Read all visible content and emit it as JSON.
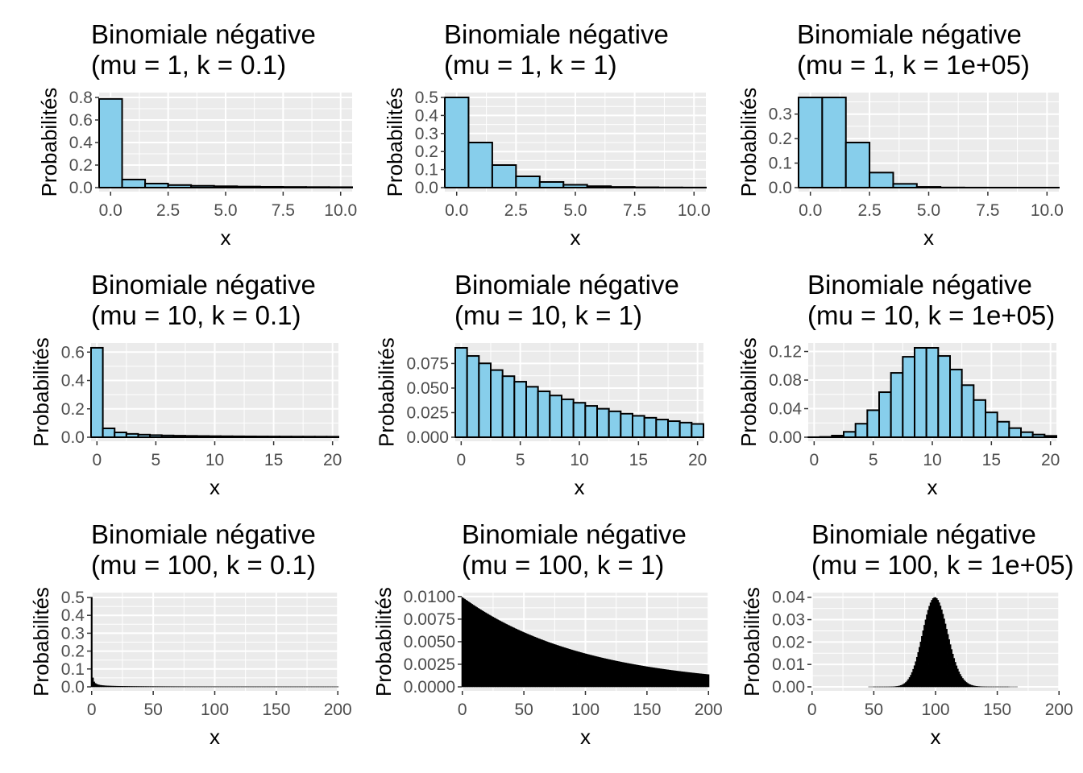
{
  "page": {
    "background": "#ffffff",
    "panel_background": "#ebebeb",
    "grid_color": "#ffffff",
    "bar_fill": "#87ceeb",
    "bar_stroke": "#000000"
  },
  "chart_data": [
    {
      "type": "bar",
      "title_line1": "Binomiale négative",
      "title_line2": "(mu = 1, k = 0.1)",
      "xlabel": "x",
      "ylabel": "Probabilités",
      "x_ticks": [
        "0.0",
        "2.5",
        "5.0",
        "7.5",
        "10.0"
      ],
      "y_ticks": [
        "0.0",
        "0.2",
        "0.4",
        "0.6",
        "0.8"
      ],
      "xlim": [
        -0.5,
        10.5
      ],
      "ylim": [
        0,
        0.8
      ],
      "mu": 1,
      "k": 0.1,
      "support_max": 10
    },
    {
      "type": "bar",
      "title_line1": "Binomiale négative",
      "title_line2": "(mu = 1, k = 1)",
      "xlabel": "x",
      "ylabel": "Probabilités",
      "x_ticks": [
        "0.0",
        "2.5",
        "5.0",
        "7.5",
        "10.0"
      ],
      "y_ticks": [
        "0.0",
        "0.1",
        "0.2",
        "0.3",
        "0.4",
        "0.5"
      ],
      "xlim": [
        -0.5,
        10.5
      ],
      "ylim": [
        0,
        0.5
      ],
      "mu": 1,
      "k": 1,
      "support_max": 10
    },
    {
      "type": "bar",
      "title_line1": "Binomiale négative",
      "title_line2": "(mu = 1, k = 1e+05)",
      "xlabel": "x",
      "ylabel": "Probabilités",
      "x_ticks": [
        "0.0",
        "2.5",
        "5.0",
        "7.5",
        "10.0"
      ],
      "y_ticks": [
        "0.0",
        "0.1",
        "0.2",
        "0.3"
      ],
      "xlim": [
        -0.5,
        10.5
      ],
      "ylim": [
        0,
        0.368
      ],
      "mu": 1,
      "k": 100000,
      "support_max": 10
    },
    {
      "type": "bar",
      "title_line1": "Binomiale négative",
      "title_line2": "(mu = 10, k = 0.1)",
      "xlabel": "x",
      "ylabel": "Probabilités",
      "x_ticks": [
        "0",
        "5",
        "10",
        "15",
        "20"
      ],
      "y_ticks": [
        "0.0",
        "0.2",
        "0.4",
        "0.6"
      ],
      "xlim": [
        -0.5,
        20.5
      ],
      "ylim": [
        0,
        0.63
      ],
      "mu": 10,
      "k": 0.1,
      "support_max": 20
    },
    {
      "type": "bar",
      "title_line1": "Binomiale négative",
      "title_line2": "(mu = 10, k = 1)",
      "xlabel": "x",
      "ylabel": "Probabilités",
      "x_ticks": [
        "0",
        "5",
        "10",
        "15",
        "20"
      ],
      "y_ticks": [
        "0.000",
        "0.025",
        "0.050",
        "0.075"
      ],
      "xlim": [
        -0.5,
        20.5
      ],
      "ylim": [
        0,
        0.0909
      ],
      "mu": 10,
      "k": 1,
      "support_max": 20
    },
    {
      "type": "bar",
      "title_line1": "Binomiale négative",
      "title_line2": "(mu = 10, k = 1e+05)",
      "xlabel": "x",
      "ylabel": "Probabilités",
      "x_ticks": [
        "0",
        "5",
        "10",
        "15",
        "20"
      ],
      "y_ticks": [
        "0.00",
        "0.04",
        "0.08",
        "0.12"
      ],
      "xlim": [
        -0.5,
        20.5
      ],
      "ylim": [
        0,
        0.1251
      ],
      "mu": 10,
      "k": 100000,
      "support_max": 20
    },
    {
      "type": "bar",
      "title_line1": "Binomiale négative",
      "title_line2": "(mu = 100, k = 0.1)",
      "xlabel": "x",
      "ylabel": "Probabilités",
      "x_ticks": [
        "0",
        "50",
        "100",
        "150",
        "200"
      ],
      "y_ticks": [
        "0.0",
        "0.1",
        "0.2",
        "0.3",
        "0.4",
        "0.5"
      ],
      "xlim": [
        -0.5,
        200.5
      ],
      "ylim": [
        0,
        0.5
      ],
      "mu": 100,
      "k": 0.1,
      "support_max": 200
    },
    {
      "type": "bar",
      "title_line1": "Binomiale négative",
      "title_line2": "(mu = 100, k = 1)",
      "xlabel": "x",
      "ylabel": "Probabilités",
      "x_ticks": [
        "0",
        "50",
        "100",
        "150",
        "200"
      ],
      "y_ticks": [
        "0.0000",
        "0.0025",
        "0.0050",
        "0.0075",
        "0.0100"
      ],
      "xlim": [
        -0.5,
        200.5
      ],
      "ylim": [
        0,
        0.0099
      ],
      "mu": 100,
      "k": 1,
      "support_max": 200
    },
    {
      "type": "bar",
      "title_line1": "Binomiale négative",
      "title_line2": "(mu = 100, k = 1e+05)",
      "xlabel": "x",
      "ylabel": "Probabilités",
      "x_ticks": [
        "0",
        "50",
        "100",
        "150",
        "200"
      ],
      "y_ticks": [
        "0.00",
        "0.01",
        "0.02",
        "0.03",
        "0.04"
      ],
      "xlim": [
        -0.5,
        200.5
      ],
      "ylim": [
        0,
        0.0399
      ],
      "mu": 100,
      "k": 100000,
      "support_max": 200
    }
  ]
}
